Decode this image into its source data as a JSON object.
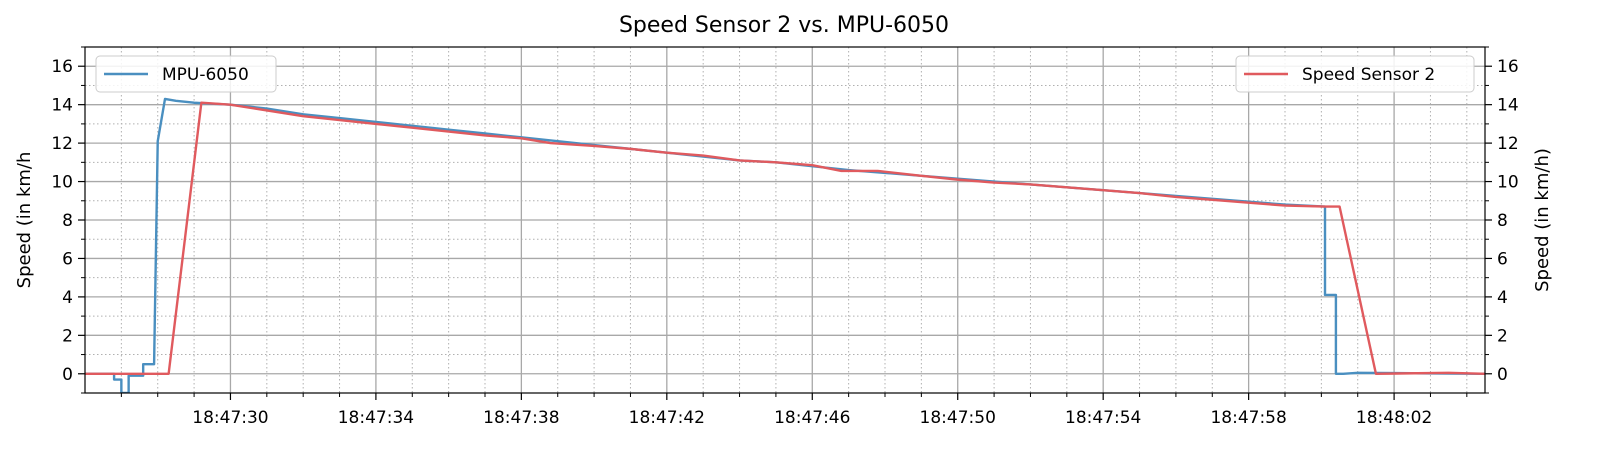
{
  "chart_data": {
    "type": "line",
    "title": "Speed Sensor 2 vs. MPU-6050",
    "xlabel": "",
    "ylabel": "Speed (in km/h",
    "ylabel_right": "Speed (in km/h)",
    "xlim": [
      "18:47:26.0",
      "18:48:04.5"
    ],
    "ylim": [
      -1,
      17
    ],
    "x_ticks": [
      "18:47:30",
      "18:47:34",
      "18:47:38",
      "18:47:42",
      "18:47:46",
      "18:47:50",
      "18:47:54",
      "18:47:58",
      "18:48:02"
    ],
    "y_ticks": [
      "0",
      "2",
      "4",
      "6",
      "8",
      "10",
      "12",
      "14",
      "16"
    ],
    "grid": true,
    "legends": [
      {
        "placement": "top-left",
        "entries": [
          "MPU-6050"
        ]
      },
      {
        "placement": "top-right",
        "entries": [
          "Speed Sensor 2"
        ]
      }
    ],
    "series": [
      {
        "name": "MPU-6050",
        "color": "#4a8fc0",
        "points": [
          [
            "18:47:26.0",
            0
          ],
          [
            "18:47:26.8",
            0
          ],
          [
            "18:47:26.8",
            -0.3
          ],
          [
            "18:47:27.0",
            -0.3
          ],
          [
            "18:47:27.0",
            -1.0
          ],
          [
            "18:47:27.2",
            -1.0
          ],
          [
            "18:47:27.2",
            -0.1
          ],
          [
            "18:47:27.6",
            -0.1
          ],
          [
            "18:47:27.6",
            0.5
          ],
          [
            "18:47:27.9",
            0.5
          ],
          [
            "18:47:28.0",
            12.1
          ],
          [
            "18:47:28.2",
            14.3
          ],
          [
            "18:47:28.5",
            14.2
          ],
          [
            "18:47:29.0",
            14.1
          ],
          [
            "18:47:30.0",
            14.0
          ],
          [
            "18:47:31.0",
            13.8
          ],
          [
            "18:47:32.0",
            13.5
          ],
          [
            "18:47:33.0",
            13.3
          ],
          [
            "18:47:34.0",
            13.1
          ],
          [
            "18:47:35.0",
            12.9
          ],
          [
            "18:47:36.0",
            12.7
          ],
          [
            "18:47:37.0",
            12.5
          ],
          [
            "18:47:38.0",
            12.3
          ],
          [
            "18:47:39.0",
            12.1
          ],
          [
            "18:47:40.0",
            11.9
          ],
          [
            "18:47:41.0",
            11.7
          ],
          [
            "18:47:42.0",
            11.5
          ],
          [
            "18:47:43.0",
            11.3
          ],
          [
            "18:47:44.0",
            11.1
          ],
          [
            "18:47:45.0",
            11.0
          ],
          [
            "18:47:46.0",
            10.8
          ],
          [
            "18:47:47.0",
            10.6
          ],
          [
            "18:47:48.0",
            10.45
          ],
          [
            "18:47:49.0",
            10.3
          ],
          [
            "18:47:50.0",
            10.15
          ],
          [
            "18:47:51.0",
            10.0
          ],
          [
            "18:47:52.0",
            9.85
          ],
          [
            "18:47:53.0",
            9.7
          ],
          [
            "18:47:54.0",
            9.55
          ],
          [
            "18:47:55.0",
            9.4
          ],
          [
            "18:47:56.0",
            9.25
          ],
          [
            "18:47:57.0",
            9.1
          ],
          [
            "18:47:58.0",
            8.95
          ],
          [
            "18:47:59.0",
            8.8
          ],
          [
            "18:48:00.1",
            8.7
          ],
          [
            "18:48:00.1",
            4.1
          ],
          [
            "18:48:00.4",
            4.1
          ],
          [
            "18:48:00.4",
            0
          ],
          [
            "18:48:00.6",
            0
          ],
          [
            "18:48:01.0",
            0.05
          ],
          [
            "18:48:04.5",
            0.0
          ]
        ]
      },
      {
        "name": "Speed Sensor 2",
        "color": "#e05a5e",
        "points": [
          [
            "18:47:26.0",
            0
          ],
          [
            "18:47:28.3",
            0
          ],
          [
            "18:47:29.2",
            14.1
          ],
          [
            "18:47:30.0",
            14.0
          ],
          [
            "18:47:31.0",
            13.7
          ],
          [
            "18:47:32.0",
            13.4
          ],
          [
            "18:47:33.0",
            13.2
          ],
          [
            "18:47:34.0",
            13.0
          ],
          [
            "18:47:35.0",
            12.8
          ],
          [
            "18:47:36.0",
            12.6
          ],
          [
            "18:47:37.0",
            12.4
          ],
          [
            "18:47:38.0",
            12.25
          ],
          [
            "18:47:38.8",
            12.0
          ],
          [
            "18:47:40.0",
            11.85
          ],
          [
            "18:47:41.0",
            11.7
          ],
          [
            "18:47:42.0",
            11.5
          ],
          [
            "18:47:43.0",
            11.35
          ],
          [
            "18:47:44.0",
            11.1
          ],
          [
            "18:47:45.0",
            11.0
          ],
          [
            "18:47:46.0",
            10.85
          ],
          [
            "18:47:46.8",
            10.55
          ],
          [
            "18:47:47.8",
            10.55
          ],
          [
            "18:47:49.0",
            10.3
          ],
          [
            "18:47:50.0",
            10.1
          ],
          [
            "18:47:51.0",
            9.95
          ],
          [
            "18:47:52.0",
            9.85
          ],
          [
            "18:47:53.0",
            9.7
          ],
          [
            "18:47:54.0",
            9.55
          ],
          [
            "18:47:55.0",
            9.4
          ],
          [
            "18:47:56.0",
            9.2
          ],
          [
            "18:47:57.0",
            9.05
          ],
          [
            "18:47:58.0",
            8.9
          ],
          [
            "18:47:59.0",
            8.75
          ],
          [
            "18:48:00.1",
            8.7
          ],
          [
            "18:48:00.5",
            8.7
          ],
          [
            "18:48:01.5",
            0.0
          ],
          [
            "18:48:03.5",
            0.05
          ],
          [
            "18:48:04.5",
            0.0
          ]
        ]
      }
    ]
  }
}
